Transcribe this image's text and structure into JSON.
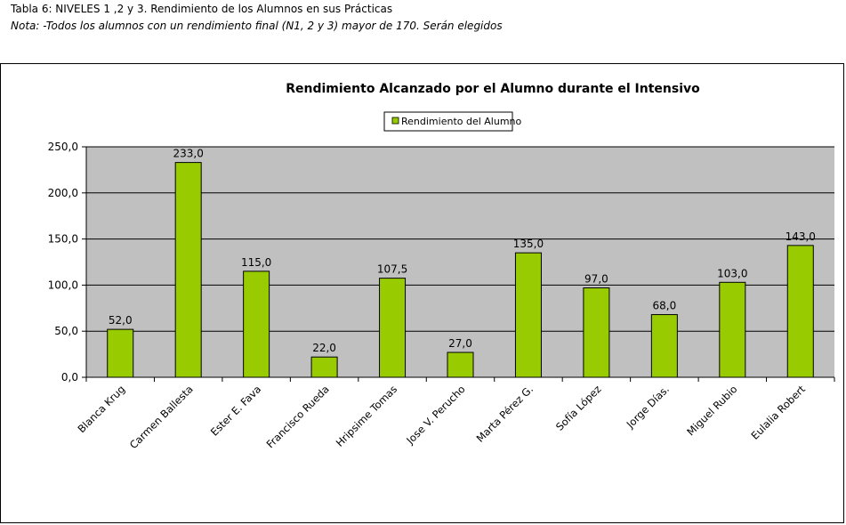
{
  "caption": {
    "line1": "Tabla 6: NIVELES 1 ,2 y 3. Rendimiento de los Alumnos en sus Prácticas",
    "line2": "Nota: -Todos los alumnos con un rendimiento final (N1, 2 y 3) mayor de 170. Serán elegidos"
  },
  "chart_data": {
    "type": "bar",
    "title": "Rendimiento Alcanzado por el Alumno durante el Intensivo",
    "legend_position": "top",
    "grid": true,
    "xlabel": "",
    "ylabel": "",
    "ylim": [
      0,
      250
    ],
    "yticks": [
      "0,0",
      "50,0",
      "100,0",
      "150,0",
      "200,0",
      "250,0"
    ],
    "categories": [
      "Blanca Krug",
      "Carmen Ballesta",
      "Ester E. Fava",
      "Francisco Rueda",
      "Hripsime Tomas",
      "Jose V. Perucho",
      "Marta Pérez G.",
      "Sofía López",
      "Jorge Días.",
      "Miguel Rubio",
      "Eulalia Robert"
    ],
    "series": [
      {
        "name": "Rendimiento del Alumno",
        "values": [
          52.0,
          233.0,
          115.0,
          22.0,
          107.5,
          27.0,
          135.0,
          97.0,
          68.0,
          103.0,
          143.0
        ],
        "labels": [
          "52,0",
          "233,0",
          "115,0",
          "22,0",
          "107,5",
          "27,0",
          "135,0",
          "97,0",
          "68,0",
          "103,0",
          "143,0"
        ]
      }
    ],
    "colors": {
      "bar": "#99cc00",
      "plot_bg": "#c0c0c0",
      "grid": "#000000"
    }
  }
}
